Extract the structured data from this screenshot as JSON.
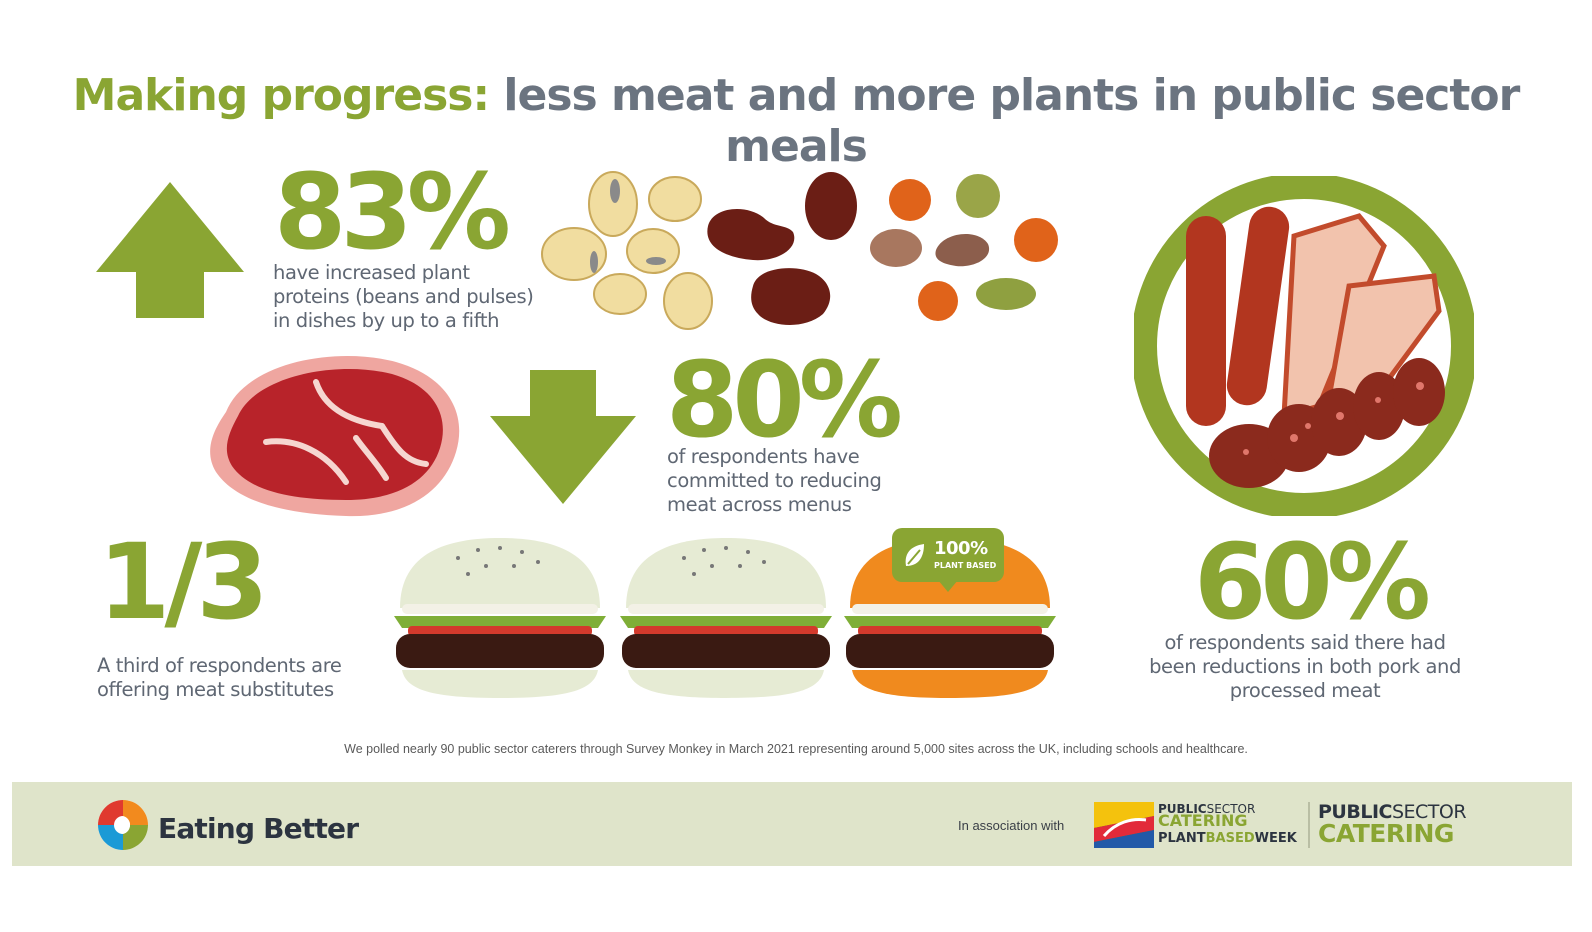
{
  "title": {
    "lead": "Making progress:",
    "rest": "less meat and more plants in public sector meals"
  },
  "stats": {
    "plant_protein": {
      "value": "83%",
      "lines": [
        "have increased plant",
        "proteins (beans and pulses)",
        "in dishes by up to a fifth"
      ]
    },
    "reduce_meat": {
      "value": "80%",
      "lines": [
        "of respondents have",
        "committed to reducing",
        "meat across menus"
      ]
    },
    "substitutes": {
      "value": "1/3",
      "lines": [
        "A third of respondents are",
        "offering meat substitutes"
      ]
    },
    "pork": {
      "value": "60%",
      "lines": [
        "of respondents said there had",
        "been reductions in both pork and",
        "processed meat"
      ]
    }
  },
  "badge": {
    "top": "100%",
    "bottom": "PLANT BASED"
  },
  "footnote": "We polled nearly 90 public sector caterers through Survey Monkey in March 2021 representing around 5,000 sites across the UK, including schools and healthcare.",
  "footer": {
    "brand": "Eating Better",
    "association": "In association with",
    "pbw": {
      "line1a": "PUBLIC",
      "line1b": "SECTOR",
      "line2": "CATERING",
      "line3a": "PLANT",
      "line3b": "BASED",
      "line3c": "WEEK"
    },
    "psc": {
      "line1a": "PUBLIC",
      "line1b": "SECTOR",
      "line2": "CATERING"
    }
  },
  "colors": {
    "green": "#8aa533",
    "grey_text": "#5f6773",
    "title_grey": "#6b7480",
    "footer_bg": "#dfe4ca"
  },
  "icons": [
    "up-arrow-icon",
    "down-arrow-icon",
    "beans-illustration",
    "steak-illustration",
    "sausage-plate-illustration",
    "burger-illustration",
    "leaf-icon",
    "eating-better-logo"
  ]
}
